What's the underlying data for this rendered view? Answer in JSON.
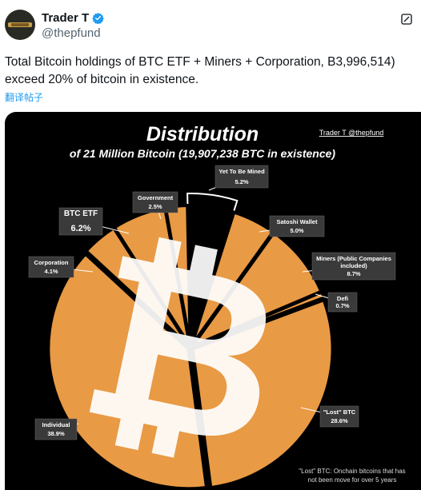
{
  "header": {
    "display_name": "Trader T",
    "handle": "@thepfund",
    "verified_icon": "verified-badge-icon",
    "action_icon": "grok-icon"
  },
  "tweet": {
    "text": "Total Bitcoin holdings of BTC ETF + Miners + Corporation, B3,996,514) exceed 20% of bitcoin in existence.",
    "translate_link": "翻译帖子"
  },
  "colors": {
    "verified": "#1d9bf0",
    "orange": "#e99a44",
    "label_bg": "#3a3a3a"
  },
  "chart_data": {
    "type": "pie",
    "title": "Distribution",
    "subtitle": "of 21 Million Bitcoin (19,907,238 BTC in existence)",
    "credit": "Trader T @thepfund",
    "footnote": "\"Lost\" BTC: Onchain bitcoins that has not been move for over 5 years",
    "slices": [
      {
        "label": "Yet To Be Mined",
        "value": 5.2,
        "value_label": "5.2%"
      },
      {
        "label": "Satoshi Wallet",
        "value": 5.0,
        "value_label": "5.0%"
      },
      {
        "label": "Miners (Public Companies included)",
        "value": 8.7,
        "value_label": "8.7%"
      },
      {
        "label": "Defi",
        "value": 0.7,
        "value_label": "0.7%"
      },
      {
        "label": "\"Lost\" BTC",
        "value": 28.6,
        "value_label": "28.6%"
      },
      {
        "label": "Individual",
        "value": 38.9,
        "value_label": "38.9%"
      },
      {
        "label": "Corporation",
        "value": 4.1,
        "value_label": "4.1%"
      },
      {
        "label": "BTC ETF",
        "value": 6.2,
        "value_label": "6.2%"
      },
      {
        "label": "Government",
        "value": 2.5,
        "value_label": "2.5%"
      }
    ]
  }
}
